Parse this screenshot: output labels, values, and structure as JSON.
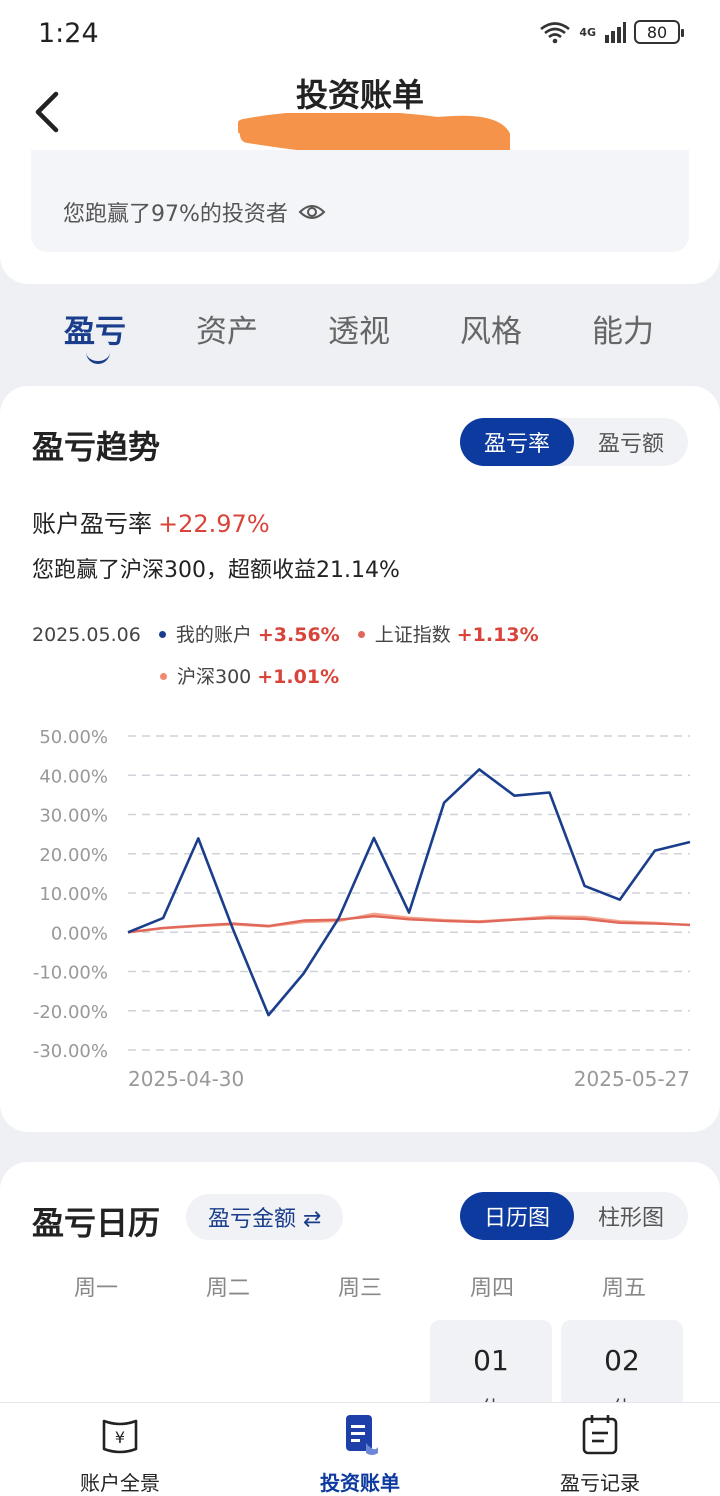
{
  "status": {
    "time": "1:24",
    "battery": "80",
    "network": "4G"
  },
  "header": {
    "title": "投资账单"
  },
  "summary": {
    "beat_text": "您跑赢了97%的投资者"
  },
  "tabs": [
    {
      "label": "盈亏"
    },
    {
      "label": "资产"
    },
    {
      "label": "透视"
    },
    {
      "label": "风格"
    },
    {
      "label": "能力"
    }
  ],
  "trend": {
    "title": "盈亏趋势",
    "toggle": [
      "盈亏率",
      "盈亏额"
    ],
    "rate_label": "账户盈亏率",
    "rate_value": "+22.97%",
    "beat_line": "您跑赢了沪深300，超额收益21.14%",
    "legend": {
      "date": "2025.05.06",
      "items": [
        {
          "name": "我的账户",
          "value": "+3.56%",
          "color": "#1a3e8c"
        },
        {
          "name": "上证指数",
          "value": "+1.13%",
          "color": "#e0675a"
        },
        {
          "name": "沪深300",
          "value": "+1.01%",
          "color": "#f08a6e"
        }
      ]
    }
  },
  "chart_data": {
    "type": "line",
    "y_ticks": [
      "50.00%",
      "40.00%",
      "30.00%",
      "20.00%",
      "10.00%",
      "0.00%",
      "-10.00%",
      "-20.00%",
      "-30.00%"
    ],
    "ylim": [
      -30,
      50
    ],
    "x_start_label": "2025-04-30",
    "x_end_label": "2025-05-27",
    "grid": true,
    "series": [
      {
        "name": "我的账户",
        "color": "#1a3e8c",
        "values": [
          0,
          3.6,
          23.9,
          0.5,
          -21.1,
          -10.5,
          3.6,
          24.0,
          5.0,
          33.0,
          41.5,
          34.8,
          35.6,
          11.8,
          8.3,
          20.8,
          23.0
        ]
      },
      {
        "name": "上证指数",
        "color": "#e0675a",
        "values": [
          0,
          1.1,
          1.7,
          2.2,
          1.6,
          3.0,
          3.2,
          4.1,
          3.3,
          2.9,
          2.6,
          3.2,
          3.6,
          3.4,
          2.4,
          2.2,
          1.9
        ]
      },
      {
        "name": "沪深300",
        "color": "#f3a388",
        "values": [
          0,
          1.0,
          1.6,
          2.0,
          1.5,
          2.6,
          2.9,
          4.7,
          3.7,
          3.1,
          2.8,
          3.3,
          4.0,
          3.9,
          2.8,
          2.4,
          1.8
        ]
      }
    ]
  },
  "calendar": {
    "title": "盈亏日历",
    "amount_label": "盈亏金额 ⇄",
    "toggle": [
      "日历图",
      "柱形图"
    ],
    "weekdays": [
      "周一",
      "周二",
      "周三",
      "周四",
      "周五"
    ],
    "days": [
      {
        "num": "01",
        "rest": "休"
      },
      {
        "num": "02",
        "rest": "休"
      }
    ]
  },
  "nav": [
    {
      "label": "账户全景",
      "icon": "wallet-icon"
    },
    {
      "label": "投资账单",
      "icon": "bill-icon"
    },
    {
      "label": "盈亏记录",
      "icon": "calendar-icon"
    }
  ]
}
